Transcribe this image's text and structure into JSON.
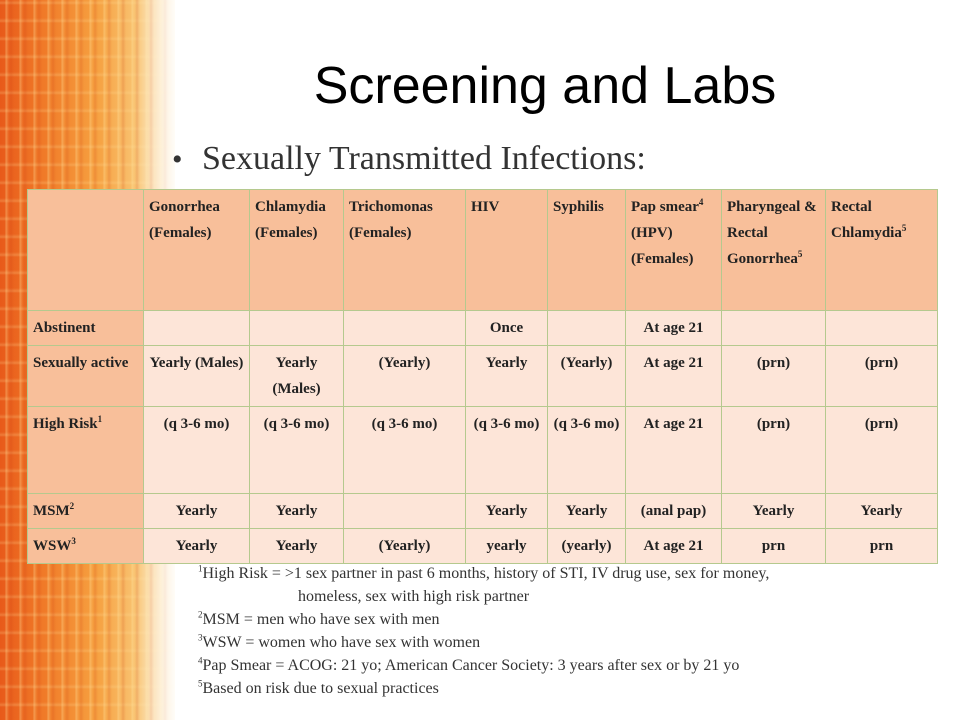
{
  "title": "Screening and Labs",
  "bullet": "Sexually Transmitted Infections:",
  "columns": [
    {
      "label": "",
      "sup": ""
    },
    {
      "label": "Gonorrhea (Females)",
      "sup": ""
    },
    {
      "label": "Chlamydia (Females)",
      "sup": ""
    },
    {
      "label": "Trichomonas (Females)",
      "sup": ""
    },
    {
      "label": "HIV",
      "sup": ""
    },
    {
      "label": "Syphilis",
      "sup": ""
    },
    {
      "label": "Pap smear",
      "sup": "4",
      "after": " (HPV) (Females)"
    },
    {
      "label": "Pharyngeal & Rectal Gonorrhea",
      "sup": "5"
    },
    {
      "label": "Rectal Chlamydia",
      "sup": "5"
    }
  ],
  "rows": [
    {
      "label": "Abstinent",
      "sup": "",
      "cells": [
        "",
        "",
        "",
        "Once",
        "",
        "At age 21",
        "",
        ""
      ]
    },
    {
      "label": "Sexually active",
      "sup": "",
      "cells": [
        "Yearly (Males)",
        "Yearly (Males)",
        "(Yearly)",
        "Yearly",
        "(Yearly)",
        "At age 21",
        "(prn)",
        "(prn)"
      ]
    },
    {
      "label": "High Risk",
      "sup": "1",
      "cells": [
        "(q 3-6 mo)",
        "(q 3-6 mo)",
        "(q 3-6 mo)",
        "(q 3-6 mo)",
        "(q 3-6 mo)",
        "At age 21",
        "(prn)",
        "(prn)"
      ]
    },
    {
      "label": "MSM",
      "sup": "2",
      "cells": [
        "Yearly",
        "Yearly",
        "",
        "Yearly",
        "Yearly",
        "(anal pap)",
        "Yearly",
        "Yearly"
      ]
    },
    {
      "label": "WSW",
      "sup": "3",
      "cells": [
        "Yearly",
        "Yearly",
        "(Yearly)",
        "yearly",
        "(yearly)",
        "At age 21",
        "prn",
        "prn"
      ]
    }
  ],
  "footnotes": [
    {
      "sup": "1",
      "text": "High Risk = >1 sex partner in past 6 months, history of STI, IV drug use, sex for money,",
      "cont": "homeless, sex with high risk partner"
    },
    {
      "sup": "2",
      "text": "MSM = men who have sex with men"
    },
    {
      "sup": "3",
      "text": "WSW = women who have sex with women"
    },
    {
      "sup": "4",
      "text": "Pap Smear = ACOG: 21 yo; American Cancer Society: 3 years after sex or by 21 yo"
    },
    {
      "sup": "5",
      "text": "Based on risk due to sexual practices"
    }
  ]
}
